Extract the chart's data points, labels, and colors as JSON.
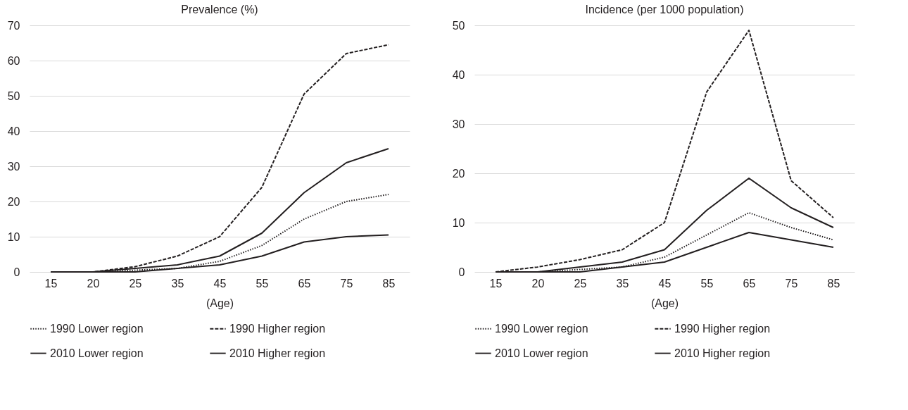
{
  "chart_data": [
    {
      "type": "line",
      "title": "Prevalence (%)",
      "xlabel": "(Age)",
      "categories": [
        "15",
        "20",
        "25",
        "35",
        "45",
        "55",
        "65",
        "75",
        "85"
      ],
      "ylim": [
        0,
        70
      ],
      "yticks": [
        0,
        10,
        20,
        30,
        40,
        50,
        60,
        70
      ],
      "grid": "y",
      "legend": "bottom",
      "marker": "none",
      "series": [
        {
          "name": "1990 Lower region",
          "color": "#231f20",
          "line_style": "dotted",
          "values": [
            0,
            0,
            0.5,
            1,
            3,
            7.5,
            15,
            20,
            22
          ]
        },
        {
          "name": "1990 Higher region",
          "color": "#231f20",
          "line_style": "dashed",
          "values": [
            0,
            0,
            1.5,
            4.5,
            10,
            24,
            50.5,
            62,
            64.5
          ]
        },
        {
          "name": "2010 Lower region",
          "color": "#231f20",
          "line_style": "solid",
          "values": [
            0,
            0,
            0,
            1,
            2,
            4.5,
            8.5,
            10,
            10.5
          ]
        },
        {
          "name": "2010 Higher region",
          "color": "#231f20",
          "line_style": "solid",
          "values": [
            0,
            0,
            1,
            2,
            4.5,
            11,
            22.5,
            31,
            35
          ]
        }
      ]
    },
    {
      "type": "line",
      "title": "Incidence (per 1000 population)",
      "xlabel": "(Age)",
      "categories": [
        "15",
        "20",
        "25",
        "35",
        "45",
        "55",
        "65",
        "75",
        "85"
      ],
      "ylim": [
        0,
        50
      ],
      "yticks": [
        0,
        10,
        20,
        30,
        40,
        50
      ],
      "grid": "y",
      "legend": "bottom",
      "marker": "none",
      "series": [
        {
          "name": "1990 Lower region",
          "color": "#231f20",
          "line_style": "dotted",
          "values": [
            0,
            0,
            0.5,
            1,
            3,
            7.5,
            12,
            9,
            6.5
          ]
        },
        {
          "name": "1990 Higher region",
          "color": "#231f20",
          "line_style": "dashed",
          "values": [
            0,
            1,
            2.5,
            4.5,
            10,
            36.5,
            49,
            18.5,
            11
          ]
        },
        {
          "name": "2010 Lower region",
          "color": "#231f20",
          "line_style": "solid",
          "values": [
            0,
            0,
            0,
            1,
            2,
            5,
            8,
            6.5,
            5
          ]
        },
        {
          "name": "2010 Higher region",
          "color": "#231f20",
          "line_style": "solid",
          "values": [
            0,
            0,
            1,
            2,
            4.5,
            12.5,
            19,
            13,
            9
          ]
        }
      ]
    }
  ]
}
